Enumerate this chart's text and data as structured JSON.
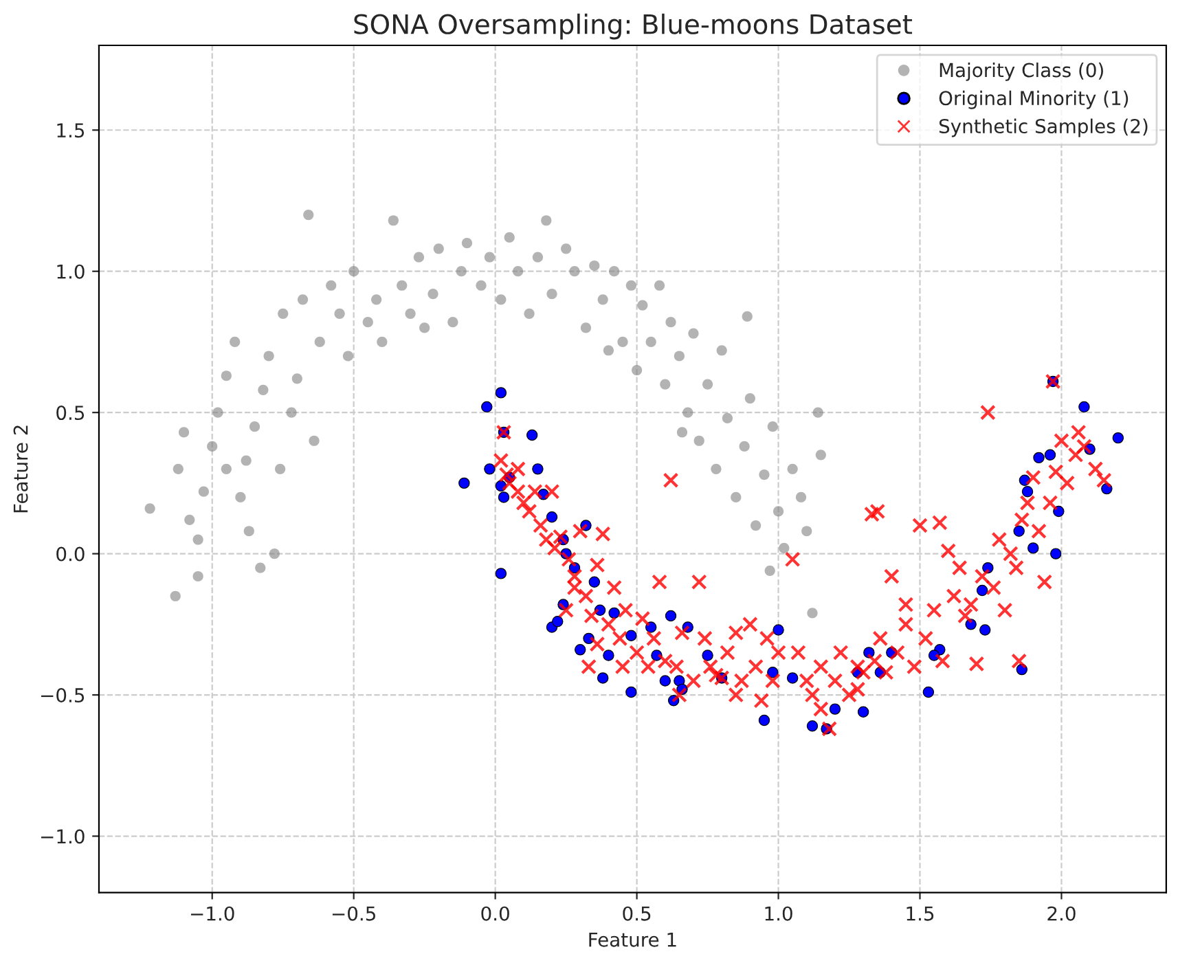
{
  "chart_data": {
    "type": "scatter",
    "title": "SONA Oversampling: Blue-moons Dataset",
    "xlabel": "Feature 1",
    "ylabel": "Feature 2",
    "xlim": [
      -1.4,
      2.37
    ],
    "ylim": [
      -1.2,
      1.8
    ],
    "xticks": [
      {
        "value": -1.0,
        "label": "−1.0"
      },
      {
        "value": -0.5,
        "label": "−0.5"
      },
      {
        "value": 0.0,
        "label": "0.0"
      },
      {
        "value": 0.5,
        "label": "0.5"
      },
      {
        "value": 1.0,
        "label": "1.0"
      },
      {
        "value": 1.5,
        "label": "1.5"
      },
      {
        "value": 2.0,
        "label": "2.0"
      }
    ],
    "yticks": [
      {
        "value": -1.0,
        "label": "−1.0"
      },
      {
        "value": -0.5,
        "label": "−0.5"
      },
      {
        "value": 0.0,
        "label": "0.0"
      },
      {
        "value": 0.5,
        "label": "0.5"
      },
      {
        "value": 1.0,
        "label": "1.0"
      },
      {
        "value": 1.5,
        "label": "1.5"
      }
    ],
    "grid": true,
    "legend": "top right",
    "series": [
      {
        "name": "Majority Class (0)",
        "color": "#808080",
        "marker": "circle",
        "x": [
          -1.22,
          -1.13,
          -1.1,
          -1.12,
          -1.08,
          -1.05,
          -1.03,
          -1.0,
          -0.98,
          -0.95,
          -0.92,
          -0.9,
          -0.88,
          -0.85,
          -0.87,
          -0.82,
          -0.8,
          -0.78,
          -0.76,
          -0.75,
          -0.72,
          -0.7,
          -0.68,
          -0.66,
          -0.64,
          -0.62,
          -0.58,
          -0.55,
          -0.52,
          -0.5,
          -0.45,
          -0.42,
          -0.4,
          -0.36,
          -0.33,
          -0.3,
          -0.27,
          -0.22,
          -0.2,
          -0.15,
          -0.12,
          -0.1,
          -0.05,
          -0.02,
          0.02,
          0.05,
          0.08,
          0.12,
          0.15,
          0.18,
          0.2,
          0.25,
          0.28,
          0.32,
          0.35,
          0.38,
          0.42,
          0.45,
          0.48,
          0.5,
          0.52,
          0.55,
          0.58,
          0.6,
          0.62,
          0.65,
          0.68,
          0.7,
          0.72,
          0.75,
          0.78,
          0.8,
          0.82,
          0.85,
          0.88,
          0.9,
          0.92,
          0.95,
          0.97,
          0.98,
          1.0,
          1.02,
          1.05,
          1.08,
          1.1,
          1.12,
          1.14,
          1.15,
          0.89,
          0.4,
          -0.25,
          -0.95,
          -1.05,
          -0.83,
          0.66
        ],
        "values": [
          0.16,
          -0.15,
          0.43,
          0.3,
          0.12,
          0.05,
          0.22,
          0.38,
          0.5,
          0.63,
          0.75,
          0.2,
          0.33,
          0.45,
          0.08,
          0.58,
          0.7,
          0.0,
          0.3,
          0.85,
          0.5,
          0.62,
          0.9,
          1.2,
          0.4,
          0.75,
          0.95,
          0.85,
          0.7,
          1.0,
          0.82,
          0.9,
          0.75,
          1.18,
          0.95,
          0.85,
          1.05,
          0.92,
          1.08,
          0.82,
          1.0,
          1.1,
          0.95,
          1.05,
          0.9,
          1.12,
          1.0,
          0.85,
          1.05,
          1.18,
          0.92,
          1.08,
          1.0,
          0.8,
          1.02,
          0.9,
          1.0,
          0.75,
          0.95,
          0.65,
          0.88,
          0.75,
          0.95,
          0.6,
          0.82,
          0.7,
          0.5,
          0.78,
          0.4,
          0.6,
          0.3,
          0.72,
          0.48,
          0.2,
          0.38,
          0.55,
          0.1,
          0.28,
          -0.06,
          0.45,
          0.15,
          0.02,
          0.3,
          0.2,
          0.08,
          -0.21,
          0.5,
          0.35,
          0.84,
          0.72,
          0.8,
          0.3,
          -0.08,
          -0.05,
          0.43
        ]
      },
      {
        "name": "Original Minority (1)",
        "color": "#0000ff",
        "marker": "circle",
        "x": [
          -0.11,
          -0.03,
          0.02,
          -0.02,
          0.02,
          0.03,
          0.03,
          0.02,
          0.05,
          0.13,
          0.15,
          0.17,
          0.2,
          0.2,
          0.22,
          0.24,
          0.24,
          0.25,
          0.28,
          0.3,
          0.32,
          0.33,
          0.35,
          0.37,
          0.38,
          0.4,
          0.42,
          0.48,
          0.48,
          0.55,
          0.57,
          0.6,
          0.62,
          0.63,
          0.65,
          0.66,
          0.68,
          0.75,
          0.8,
          0.95,
          0.98,
          1.0,
          1.05,
          1.12,
          1.17,
          1.2,
          1.28,
          1.3,
          1.32,
          1.36,
          1.4,
          1.53,
          1.57,
          1.68,
          1.73,
          1.74,
          1.85,
          1.86,
          1.87,
          1.88,
          1.92,
          1.96,
          1.97,
          1.98,
          1.99,
          2.08,
          2.1,
          2.16,
          2.2,
          1.9,
          1.72,
          1.55
        ],
        "values": [
          0.25,
          0.52,
          0.57,
          0.3,
          0.24,
          0.2,
          0.43,
          -0.07,
          0.27,
          0.42,
          0.3,
          0.21,
          0.13,
          -0.26,
          -0.24,
          -0.18,
          0.05,
          0.0,
          -0.05,
          -0.34,
          0.1,
          -0.3,
          -0.1,
          -0.2,
          -0.44,
          -0.36,
          -0.21,
          -0.49,
          -0.29,
          -0.26,
          -0.36,
          -0.45,
          -0.22,
          -0.52,
          -0.45,
          -0.48,
          -0.26,
          -0.36,
          -0.44,
          -0.59,
          -0.42,
          -0.27,
          -0.44,
          -0.61,
          -0.62,
          -0.55,
          -0.42,
          -0.56,
          -0.35,
          -0.42,
          -0.35,
          -0.49,
          -0.34,
          -0.25,
          -0.27,
          -0.05,
          0.08,
          -0.41,
          0.26,
          0.22,
          0.34,
          0.35,
          0.61,
          0.0,
          0.15,
          0.52,
          0.37,
          0.23,
          0.41,
          0.02,
          -0.13,
          -0.36
        ]
      },
      {
        "name": "Synthetic Samples (2)",
        "color": "#ff0000",
        "marker": "cross",
        "x": [
          0.02,
          0.04,
          0.05,
          0.08,
          0.1,
          0.12,
          0.14,
          0.16,
          0.18,
          0.21,
          0.23,
          0.26,
          0.28,
          0.3,
          0.32,
          0.34,
          0.36,
          0.38,
          0.4,
          0.42,
          0.44,
          0.46,
          0.25,
          0.28,
          0.33,
          0.36,
          0.5,
          0.52,
          0.54,
          0.56,
          0.58,
          0.6,
          0.62,
          0.64,
          0.66,
          0.7,
          0.72,
          0.74,
          0.76,
          0.78,
          0.8,
          0.82,
          0.85,
          0.87,
          0.9,
          0.92,
          0.94,
          0.96,
          0.98,
          1.0,
          1.05,
          1.07,
          1.1,
          1.12,
          1.15,
          1.18,
          1.2,
          1.22,
          1.25,
          1.28,
          1.3,
          1.33,
          1.34,
          1.36,
          1.38,
          1.4,
          1.42,
          1.45,
          1.48,
          1.5,
          1.52,
          1.55,
          1.57,
          1.58,
          1.6,
          1.62,
          1.64,
          1.66,
          1.68,
          1.7,
          1.72,
          1.74,
          1.76,
          1.78,
          1.8,
          1.82,
          1.84,
          1.85,
          1.86,
          1.88,
          1.9,
          1.92,
          1.94,
          1.96,
          1.98,
          2.0,
          2.02,
          2.05,
          2.08,
          2.12,
          2.15,
          1.97,
          1.15,
          0.85,
          0.65,
          0.45,
          1.35,
          1.28,
          2.06,
          1.45,
          0.2,
          0.08,
          0.03
        ],
        "values": [
          0.33,
          0.28,
          0.25,
          0.3,
          0.18,
          0.15,
          0.22,
          0.1,
          0.05,
          0.02,
          0.06,
          -0.02,
          -0.08,
          0.08,
          -0.15,
          -0.22,
          -0.04,
          0.07,
          -0.25,
          -0.12,
          -0.3,
          -0.2,
          -0.2,
          -0.12,
          -0.4,
          -0.32,
          -0.35,
          -0.23,
          -0.4,
          -0.3,
          -0.1,
          -0.38,
          0.26,
          -0.4,
          -0.28,
          -0.45,
          -0.1,
          -0.3,
          -0.4,
          -0.43,
          -0.44,
          -0.35,
          -0.28,
          -0.45,
          -0.25,
          -0.4,
          -0.52,
          -0.3,
          -0.45,
          -0.35,
          -0.02,
          -0.35,
          -0.45,
          -0.5,
          -0.4,
          -0.62,
          -0.45,
          -0.35,
          -0.5,
          -0.4,
          -0.42,
          0.14,
          -0.38,
          -0.3,
          -0.42,
          -0.08,
          -0.35,
          -0.25,
          -0.4,
          0.1,
          -0.3,
          -0.2,
          0.11,
          -0.38,
          0.01,
          -0.15,
          -0.05,
          -0.22,
          -0.18,
          -0.39,
          -0.08,
          0.5,
          -0.12,
          0.05,
          -0.2,
          0.0,
          -0.05,
          -0.38,
          0.12,
          0.18,
          0.27,
          0.08,
          -0.1,
          0.18,
          0.29,
          0.4,
          0.25,
          0.35,
          0.38,
          0.3,
          0.26,
          0.61,
          -0.55,
          -0.5,
          -0.5,
          -0.4,
          0.15,
          -0.48,
          0.43,
          -0.18,
          0.22,
          0.22,
          0.43
        ]
      }
    ]
  }
}
